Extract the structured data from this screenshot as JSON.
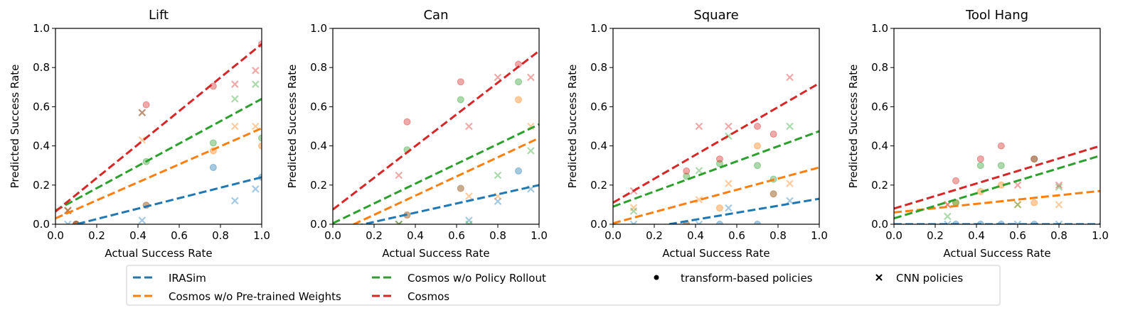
{
  "chart_data": [
    {
      "type": "scatter",
      "title": "Lift",
      "xlabel": "Actual Success Rate",
      "ylabel": "Predicted Success Rate",
      "xlim": [
        0,
        1
      ],
      "ylim": [
        0,
        1
      ],
      "xticks": [
        "0.0",
        "0.2",
        "0.4",
        "0.6",
        "0.8",
        "1.0"
      ],
      "yticks": [
        "0.0",
        "0.2",
        "0.4",
        "0.6",
        "0.8",
        "1.0"
      ],
      "grid": false,
      "series": [
        {
          "name": "IRASim",
          "fit": [
            -0.027,
            0.267
          ],
          "transformer": [
            [
              0.1,
              0
            ],
            [
              0.44,
              0.097
            ],
            [
              0.765,
              0.29
            ],
            [
              1.0,
              0.24
            ]
          ],
          "cnn": [
            [
              0.06,
              0
            ],
            [
              0.42,
              0.02
            ],
            [
              0.87,
              0.12
            ],
            [
              0.97,
              0.18
            ]
          ]
        },
        {
          "name": "Cosmos w/o Pre-trained Weights",
          "fit": [
            0.03,
            0.46
          ],
          "transformer": [
            [
              0.1,
              0
            ],
            [
              0.44,
              0.097
            ],
            [
              0.765,
              0.375
            ],
            [
              1.0,
              0.4
            ]
          ],
          "cnn": [
            [
              0.06,
              0.07
            ],
            [
              0.42,
              0.43
            ],
            [
              0.87,
              0.5
            ],
            [
              0.97,
              0.5
            ]
          ]
        },
        {
          "name": "Cosmos w/o Policy Rollout",
          "fit": [
            0.07,
            0.57
          ],
          "transformer": [
            [
              0.1,
              0
            ],
            [
              0.44,
              0.32
            ],
            [
              0.765,
              0.415
            ],
            [
              1.0,
              0.44
            ]
          ],
          "cnn": [
            [
              0.06,
              0.07
            ],
            [
              0.42,
              0.57
            ],
            [
              0.87,
              0.64
            ],
            [
              0.97,
              0.715
            ]
          ]
        },
        {
          "name": "Cosmos",
          "fit": [
            0.065,
            0.855
          ],
          "transformer": [
            [
              0.1,
              0
            ],
            [
              0.44,
              0.61
            ],
            [
              0.765,
              0.705
            ],
            [
              1.0,
              0.92
            ]
          ],
          "cnn": [
            [
              0.06,
              0.07
            ],
            [
              0.42,
              0.57
            ],
            [
              0.87,
              0.715
            ],
            [
              0.97,
              0.785
            ]
          ]
        }
      ]
    },
    {
      "type": "scatter",
      "title": "Can",
      "xlabel": "Actual Success Rate",
      "ylabel": "Predicted Success Rate",
      "xlim": [
        0,
        1
      ],
      "ylim": [
        0,
        1
      ],
      "xticks": [
        "0.0",
        "0.2",
        "0.4",
        "0.6",
        "0.8",
        "1.0"
      ],
      "yticks": [
        "0.0",
        "0.2",
        "0.4",
        "0.6",
        "0.8",
        "1.0"
      ],
      "grid": false,
      "series": [
        {
          "name": "IRASim",
          "fit": [
            -0.035,
            0.235
          ],
          "transformer": [
            [
              0.36,
              0.047
            ],
            [
              0.62,
              0.183
            ],
            [
              0.9,
              0.272
            ]
          ],
          "cnn": [
            [
              0.32,
              0
            ],
            [
              0.66,
              0.02
            ],
            [
              0.8,
              0.117
            ],
            [
              0.96,
              0.18
            ]
          ]
        },
        {
          "name": "Cosmos w/o Pre-trained Weights",
          "fit": [
            -0.05,
            0.49
          ],
          "transformer": [
            [
              0.36,
              0.047
            ],
            [
              0.62,
              0.183
            ],
            [
              0.9,
              0.636
            ]
          ],
          "cnn": [
            [
              0.32,
              0
            ],
            [
              0.66,
              0.143
            ],
            [
              0.8,
              0.143
            ],
            [
              0.96,
              0.5
            ]
          ]
        },
        {
          "name": "Cosmos w/o Policy Rollout",
          "fit": [
            0.005,
            0.505
          ],
          "transformer": [
            [
              0.36,
              0.38
            ],
            [
              0.62,
              0.636
            ],
            [
              0.9,
              0.727
            ]
          ],
          "cnn": [
            [
              0.32,
              0
            ],
            [
              0.66,
              0
            ],
            [
              0.8,
              0.25
            ],
            [
              0.96,
              0.375
            ]
          ]
        },
        {
          "name": "Cosmos",
          "fit": [
            0.075,
            0.81
          ],
          "transformer": [
            [
              0.36,
              0.523
            ],
            [
              0.62,
              0.727
            ],
            [
              0.9,
              0.817
            ]
          ],
          "cnn": [
            [
              0.32,
              0.25
            ],
            [
              0.66,
              0.5
            ],
            [
              0.8,
              0.75
            ],
            [
              0.96,
              0.75
            ]
          ]
        }
      ]
    },
    {
      "type": "scatter",
      "title": "Square",
      "xlabel": "Actual Success Rate",
      "ylabel": "Predicted Success Rate",
      "xlim": [
        0,
        1
      ],
      "ylim": [
        0,
        1
      ],
      "xticks": [
        "0.0",
        "0.2",
        "0.4",
        "0.6",
        "0.8",
        "1.0"
      ],
      "yticks": [
        "0.0",
        "0.2",
        "0.4",
        "0.6",
        "0.8",
        "1.0"
      ],
      "grid": false,
      "series": [
        {
          "name": "IRASim",
          "fit": [
            -0.048,
            0.178
          ],
          "transformer": [
            [
              0.356,
              0
            ],
            [
              0.517,
              0
            ],
            [
              0.7,
              0
            ],
            [
              0.778,
              0.155
            ]
          ],
          "cnn": [
            [
              0.1,
              0
            ],
            [
              0.417,
              0
            ],
            [
              0.56,
              0.083
            ],
            [
              0.857,
              0.12
            ]
          ]
        },
        {
          "name": "Cosmos w/o Pre-trained Weights",
          "fit": [
            0.005,
            0.285
          ],
          "transformer": [
            [
              0.356,
              0
            ],
            [
              0.517,
              0.083
            ],
            [
              0.7,
              0.4
            ],
            [
              0.778,
              0.155
            ]
          ],
          "cnn": [
            [
              0.1,
              0.085
            ],
            [
              0.417,
              0.125
            ],
            [
              0.56,
              0.208
            ],
            [
              0.857,
              0.208
            ]
          ]
        },
        {
          "name": "Cosmos w/o Policy Rollout",
          "fit": [
            0.09,
            0.385
          ],
          "transformer": [
            [
              0.356,
              0.245
            ],
            [
              0.517,
              0.31
            ],
            [
              0.7,
              0.3
            ],
            [
              0.778,
              0.23
            ]
          ],
          "cnn": [
            [
              0.1,
              0.067
            ],
            [
              0.417,
              0.274
            ],
            [
              0.56,
              0.45
            ],
            [
              0.857,
              0.5
            ]
          ]
        },
        {
          "name": "Cosmos",
          "fit": [
            0.11,
            0.61
          ],
          "transformer": [
            [
              0.356,
              0.272
            ],
            [
              0.517,
              0.333
            ],
            [
              0.7,
              0.5
            ],
            [
              0.778,
              0.46
            ]
          ],
          "cnn": [
            [
              0.1,
              0.17
            ],
            [
              0.417,
              0.5
            ],
            [
              0.56,
              0.5
            ],
            [
              0.857,
              0.75
            ]
          ]
        }
      ]
    },
    {
      "type": "scatter",
      "title": "Tool Hang",
      "xlabel": "Actual Success Rate",
      "ylabel": "Predicted Success Rate",
      "xlim": [
        0,
        1
      ],
      "ylim": [
        0,
        1
      ],
      "xticks": [
        "0.0",
        "0.2",
        "0.4",
        "0.6",
        "0.8",
        "1.0"
      ],
      "yticks": [
        "0.0",
        "0.2",
        "0.4",
        "0.6",
        "0.8",
        "1.0"
      ],
      "grid": false,
      "series": [
        {
          "name": "IRASim",
          "fit": [
            0,
            0
          ],
          "transformer": [
            [
              0.3,
              0
            ],
            [
              0.42,
              0
            ],
            [
              0.52,
              0
            ],
            [
              0.68,
              0
            ]
          ],
          "cnn": [
            [
              0.26,
              0
            ],
            [
              0.6,
              0
            ],
            [
              0.8,
              0
            ]
          ]
        },
        {
          "name": "Cosmos w/o Pre-trained Weights",
          "fit": [
            0.06,
            0.11
          ],
          "transformer": [
            [
              0.3,
              0.11
            ],
            [
              0.42,
              0.167
            ],
            [
              0.52,
              0.2
            ],
            [
              0.68,
              0.11
            ]
          ],
          "cnn": [
            [
              0.26,
              0.1
            ],
            [
              0.6,
              0.1
            ],
            [
              0.8,
              0.1
            ]
          ]
        },
        {
          "name": "Cosmos w/o Policy Rollout",
          "fit": [
            0.03,
            0.32
          ],
          "transformer": [
            [
              0.3,
              0.11
            ],
            [
              0.42,
              0.3
            ],
            [
              0.52,
              0.3
            ],
            [
              0.68,
              0.333
            ]
          ],
          "cnn": [
            [
              0.26,
              0.04
            ],
            [
              0.6,
              0.1
            ],
            [
              0.8,
              0.19
            ]
          ]
        },
        {
          "name": "Cosmos",
          "fit": [
            0.08,
            0.32
          ],
          "transformer": [
            [
              0.3,
              0.222
            ],
            [
              0.42,
              0.333
            ],
            [
              0.52,
              0.4
            ],
            [
              0.68,
              0.333
            ]
          ],
          "cnn": [
            [
              0.26,
              0.1
            ],
            [
              0.6,
              0.2
            ],
            [
              0.8,
              0.2
            ]
          ]
        }
      ]
    }
  ],
  "colors": {
    "IRASim": "#1f77b4",
    "Cosmos w/o Pre-trained Weights": "#ff7f0e",
    "Cosmos w/o Policy Rollout": "#2ca02c",
    "Cosmos": "#d62728"
  },
  "legend": {
    "placement": "bottom-center",
    "lines": [
      "IRASim",
      "Cosmos w/o Pre-trained Weights",
      "Cosmos w/o Policy Rollout",
      "Cosmos"
    ],
    "markers": {
      "circle": "transform-based policies",
      "cross": "CNN policies"
    }
  }
}
